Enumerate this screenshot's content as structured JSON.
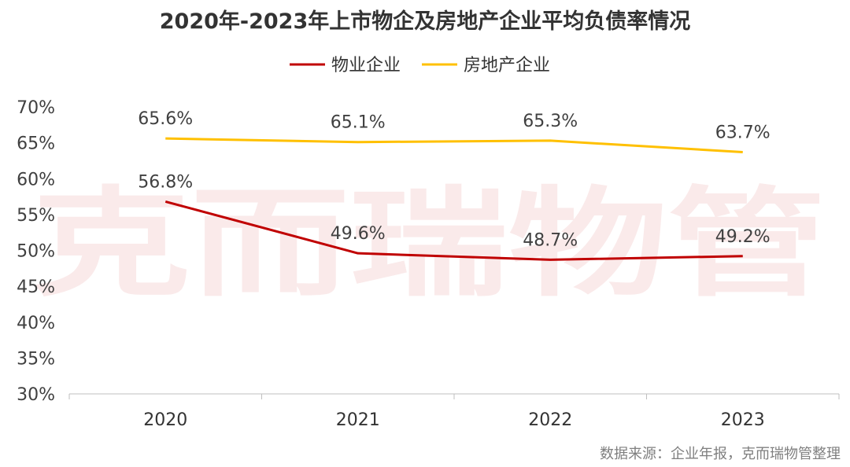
{
  "chart_data": {
    "type": "line",
    "title": "2020年-2023年上市物企及房地产企业平均负债率情况",
    "categories": [
      "2020",
      "2021",
      "2022",
      "2023"
    ],
    "series": [
      {
        "name": "物业企业",
        "color": "#c00000",
        "values": [
          56.8,
          49.6,
          48.7,
          49.2
        ],
        "labels": [
          "56.8%",
          "49.6%",
          "48.7%",
          "49.2%"
        ]
      },
      {
        "name": "房地产企业",
        "color": "#ffc000",
        "values": [
          65.6,
          65.1,
          65.3,
          63.7
        ],
        "labels": [
          "65.6%",
          "65.1%",
          "65.3%",
          "63.7%"
        ]
      }
    ],
    "ylim": [
      30,
      70
    ],
    "yticks": [
      30,
      35,
      40,
      45,
      50,
      55,
      60,
      65,
      70
    ],
    "ytick_labels": [
      "30%",
      "35%",
      "40%",
      "45%",
      "50%",
      "55%",
      "60%",
      "65%",
      "70%"
    ],
    "legend_position": "top-center",
    "grid": false
  },
  "watermark": "克而瑞物管",
  "source": "数据来源：企业年报，克而瑞物管整理"
}
